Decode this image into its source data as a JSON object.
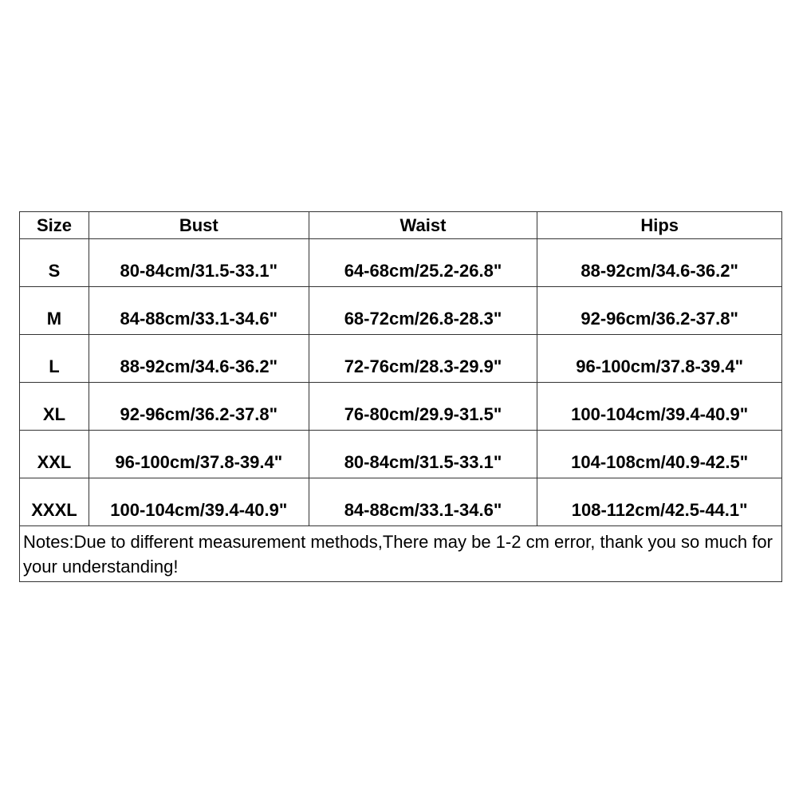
{
  "table": {
    "headers": [
      "Size",
      "Bust",
      "Waist",
      "Hips"
    ],
    "rows": [
      [
        "S",
        "80-84cm/31.5-33.1\"",
        "64-68cm/25.2-26.8\"",
        "88-92cm/34.6-36.2\""
      ],
      [
        "M",
        "84-88cm/33.1-34.6\"",
        "68-72cm/26.8-28.3\"",
        "92-96cm/36.2-37.8\""
      ],
      [
        "L",
        "88-92cm/34.6-36.2\"",
        "72-76cm/28.3-29.9\"",
        "96-100cm/37.8-39.4\""
      ],
      [
        "XL",
        "92-96cm/36.2-37.8\"",
        "76-80cm/29.9-31.5\"",
        "100-104cm/39.4-40.9\""
      ],
      [
        "XXL",
        "96-100cm/37.8-39.4\"",
        "80-84cm/31.5-33.1\"",
        "104-108cm/40.9-42.5\""
      ],
      [
        "XXXL",
        "100-104cm/39.4-40.9\"",
        "84-88cm/33.1-34.6\"",
        "108-112cm/42.5-44.1\""
      ]
    ],
    "notes": "Notes:Due to different measurement methods,There may be 1-2 cm error, thank you so much for your understanding!"
  }
}
